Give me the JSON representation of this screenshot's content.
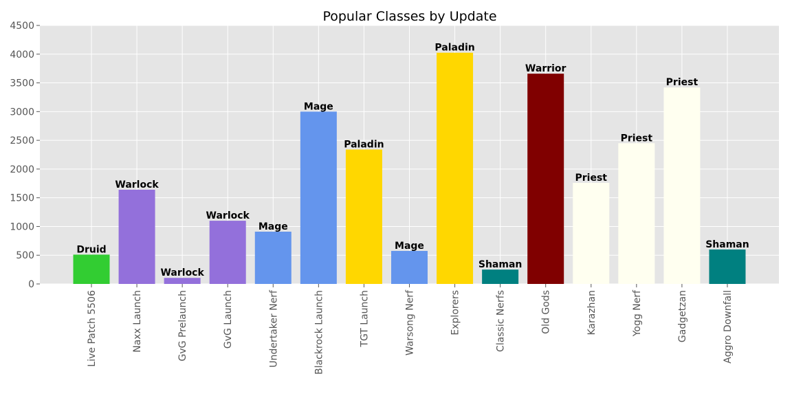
{
  "chart_data": {
    "type": "bar",
    "title": "Popular Classes by Update",
    "xlabel": "",
    "ylabel": "",
    "ylim": [
      0,
      4500
    ],
    "yticks": [
      0,
      500,
      1000,
      1500,
      2000,
      2500,
      3000,
      3500,
      4000,
      4500
    ],
    "grid": true,
    "legend": "none",
    "background_color": "#e5e5e5",
    "grid_color": "#ffffff",
    "categories": [
      "Live Patch 5506",
      "Naxx Launch",
      "GvG Prelaunch",
      "GvG Launch",
      "Undertaker Nerf",
      "Blackrock Launch",
      "TGT Launch",
      "Warsong Nerf",
      "Explorers",
      "Classic Nerfs",
      "Old Gods",
      "Karazhan",
      "Yogg Nerf",
      "Gadgetzan",
      "Aggro Downfall"
    ],
    "values": [
      510,
      1640,
      105,
      1100,
      910,
      3000,
      2340,
      575,
      4025,
      250,
      3660,
      1760,
      2450,
      3420,
      600
    ],
    "bar_labels": [
      "Druid",
      "Warlock",
      "Warlock",
      "Warlock",
      "Mage",
      "Mage",
      "Paladin",
      "Mage",
      "Paladin",
      "Shaman",
      "Warrior",
      "Priest",
      "Priest",
      "Priest",
      "Shaman"
    ],
    "bar_colors": [
      "#32cd32",
      "#9370db",
      "#9370db",
      "#9370db",
      "#6495ed",
      "#6495ed",
      "#ffd700",
      "#6495ed",
      "#ffd700",
      "#008080",
      "#800000",
      "#fffff0",
      "#fffff0",
      "#fffff0",
      "#008080"
    ]
  }
}
